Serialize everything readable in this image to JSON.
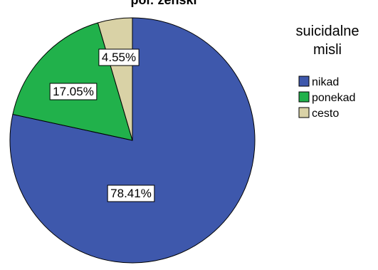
{
  "chart_data": {
    "type": "pie",
    "title": "pol: ženski",
    "legend_title": "suicidalne misli",
    "legend_title_lines": [
      "suicidalne",
      "misli"
    ],
    "legend_position": "right",
    "slices": [
      {
        "name": "nikad",
        "value": 78.41,
        "label": "78.41%",
        "color": "#3e58ac"
      },
      {
        "name": "ponekad",
        "value": 17.05,
        "label": "17.05%",
        "color": "#21b14b"
      },
      {
        "name": "cesto",
        "value": 4.55,
        "label": "4.55%",
        "color": "#d9d2a6"
      }
    ]
  }
}
